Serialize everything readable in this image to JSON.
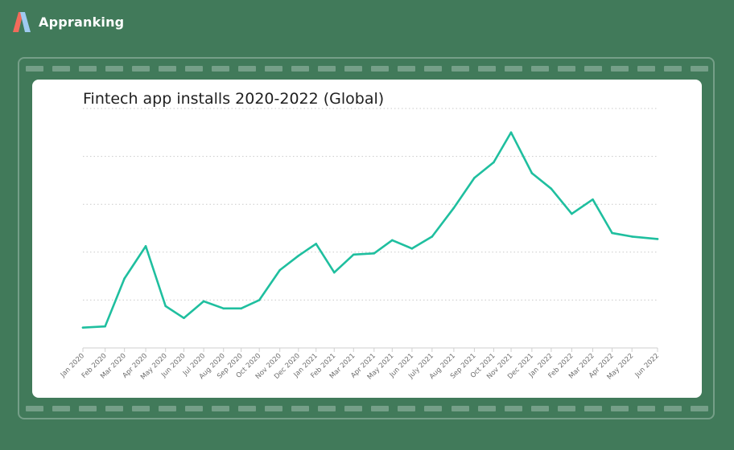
{
  "brand": {
    "name": "Appranking",
    "logo_icon": "appranking-logo-icon"
  },
  "colors": {
    "background": "#417a5a",
    "line": "#1fbf9f",
    "card": "#ffffff",
    "grid": "#c9c9c9"
  },
  "chart_data": {
    "type": "line",
    "title": "Fintech app installs 2020-2022 (Global)",
    "xlabel": "",
    "ylabel": "",
    "yticks_shown": false,
    "grid": "horizontal dotted",
    "legend": "none",
    "ylim": [
      0,
      100
    ],
    "categories": [
      "Jan 2020",
      "Feb 2020",
      "Mar 2020",
      "Apr 2020",
      "May 2020",
      "Jun 2020",
      "Jul 2020",
      "Aug 2020",
      "Sep 2020",
      "Oct 2020",
      "Nov 2020",
      "Dec 2020",
      "Jan 2021",
      "Feb 2021",
      "Mar 2021",
      "Apr 2021",
      "May 2021",
      "Jun 2021",
      "July 2021",
      "Aug 2021",
      "Sep 2021",
      "Oct 2021",
      "Nov 2021",
      "Dec 2021",
      "Jan 2022",
      "Feb 2022",
      "Mar 2022",
      "Apr 2022",
      "May 2022",
      "Jun 2022"
    ],
    "x": [
      0,
      0.92,
      1.72,
      2.6,
      3.42,
      4.18,
      5.0,
      5.82,
      6.55,
      7.3,
      8.15,
      8.92,
      9.65,
      10.4,
      11.2,
      12.05,
      12.8,
      13.62,
      14.45,
      15.35,
      16.2,
      17.0,
      17.72,
      18.58,
      19.38,
      20.23,
      21.1,
      21.9,
      22.72,
      23.78
    ],
    "values": [
      8.5,
      9,
      29,
      42.5,
      17.5,
      12.5,
      19.5,
      16.5,
      16.5,
      20,
      32.5,
      38.5,
      43.5,
      31.5,
      39,
      39.5,
      45,
      41.5,
      46.5,
      58.5,
      71,
      77.5,
      90,
      73,
      66.5,
      56,
      62,
      48,
      46.5,
      45.5
    ]
  }
}
